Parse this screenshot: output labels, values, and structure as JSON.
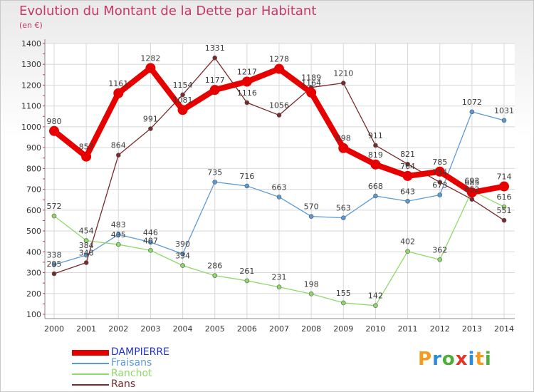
{
  "title": "Evolution du Montant de la Dette par Habitant",
  "subtitle": "(en €)",
  "logo": {
    "letters": [
      "P",
      "r",
      "o",
      "x",
      "i",
      "t",
      "i"
    ],
    "colors": [
      "#f29b1d",
      "#2e8bd6",
      "#4fae3b",
      "#e6342a",
      "#2e8bd6",
      "#f29b1d",
      "#4fae3b"
    ]
  },
  "chart_data": {
    "type": "line",
    "x": [
      "2000",
      "2001",
      "2002",
      "2003",
      "2004",
      "2005",
      "2006",
      "2007",
      "2008",
      "2009",
      "2010",
      "2011",
      "2012",
      "2013",
      "2014"
    ],
    "ylim": [
      100,
      1400
    ],
    "yticks": [
      "100",
      "200",
      "300",
      "400",
      "500",
      "600",
      "700",
      "800",
      "900",
      "1000",
      "1100",
      "1200",
      "1300",
      "1400"
    ],
    "grid": true,
    "legend_position": "bottom-left",
    "series": [
      {
        "name": "DAMPIERRE",
        "color": "#e60000",
        "values": [
          980,
          857,
          1161,
          1282,
          1081,
          1177,
          1217,
          1278,
          1164,
          898,
          819,
          764,
          785,
          685,
          714
        ]
      },
      {
        "name": "Fraisans",
        "color": "#5b9bd5",
        "values": [
          338,
          384,
          483,
          446,
          390,
          735,
          716,
          663,
          570,
          563,
          668,
          643,
          673,
          1072,
          1031
        ]
      },
      {
        "name": "Ranchot",
        "color": "#8fd86a",
        "values": [
          572,
          454,
          435,
          407,
          334,
          286,
          261,
          231,
          198,
          155,
          142,
          402,
          362,
          693,
          616
        ]
      },
      {
        "name": "Rans",
        "color": "#7a2a2a",
        "values": [
          295,
          348,
          864,
          991,
          1154,
          1331,
          1116,
          1056,
          1189,
          1210,
          911,
          821,
          734,
          652,
          551
        ]
      }
    ]
  }
}
